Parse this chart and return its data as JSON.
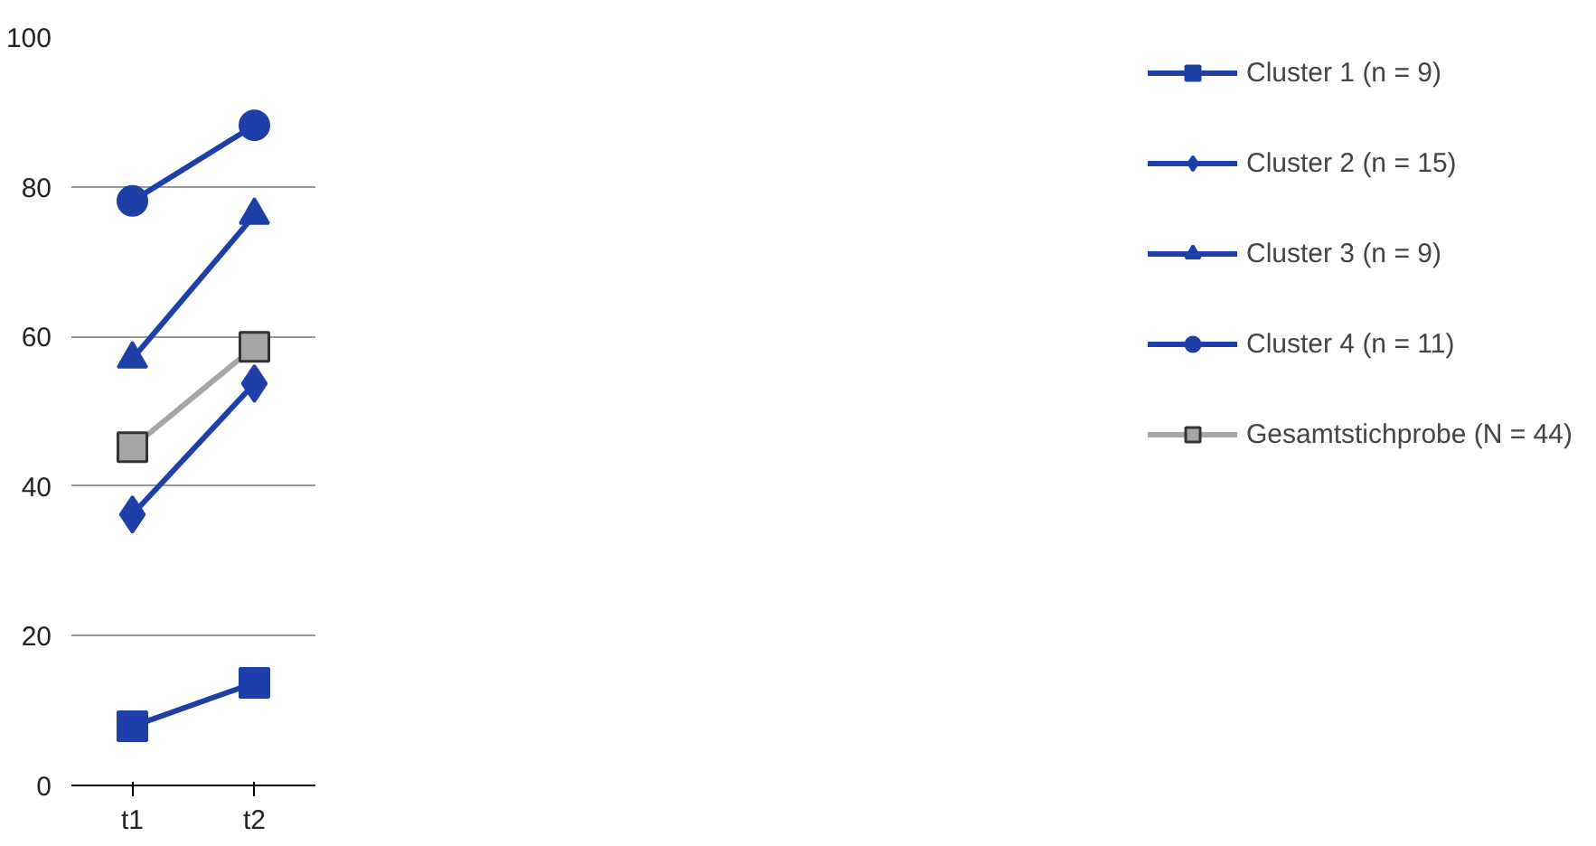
{
  "chart_data": {
    "type": "line",
    "categories": [
      "t1",
      "t2"
    ],
    "ylim": [
      0,
      100
    ],
    "yticks": [
      0,
      20,
      40,
      60,
      80,
      100
    ],
    "grid": "y",
    "legend": "right",
    "series": [
      {
        "name": "Cluster 1 (n = 9)",
        "color": "#1f3fa8",
        "marker": "square",
        "values": [
          7.9,
          13.7
        ]
      },
      {
        "name": "Cluster 2 (n = 15)",
        "color": "#1f3fa8",
        "marker": "diamond",
        "values": [
          36.2,
          53.7
        ]
      },
      {
        "name": "Cluster 3 (n = 9)",
        "color": "#1f3fa8",
        "marker": "triangle",
        "values": [
          57,
          76.2
        ]
      },
      {
        "name": "Cluster 4 (n = 11)",
        "color": "#1f3fa8",
        "marker": "circle",
        "values": [
          78.1,
          88.2
        ]
      },
      {
        "name": "Gesamtstichprobe (N = 44)",
        "color": "#a6a6a6",
        "marker": "square",
        "values": [
          45.2,
          58.6
        ]
      }
    ]
  }
}
